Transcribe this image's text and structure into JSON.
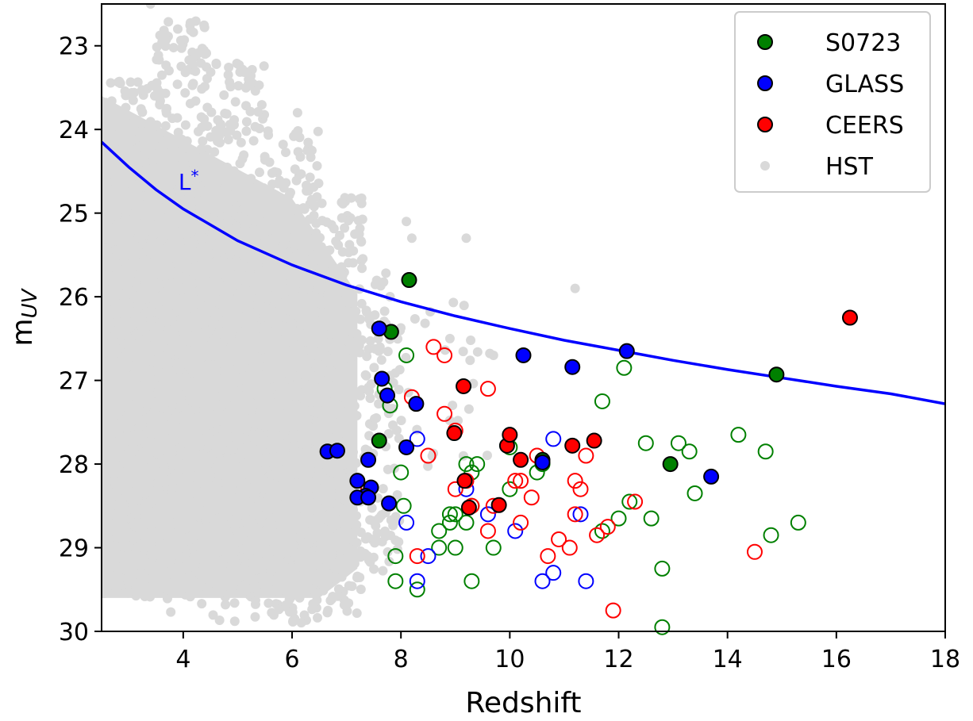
{
  "chart_data": {
    "type": "scatter",
    "title": "",
    "xlabel": "Redshift",
    "ylabel": "m",
    "ylabel_subscript": "UV",
    "xlim": [
      2.5,
      18
    ],
    "ylim": [
      30,
      22.5
    ],
    "y_inverted": true,
    "x_ticks": [
      4,
      6,
      8,
      10,
      12,
      14,
      16,
      18
    ],
    "y_ticks": [
      23,
      24,
      25,
      26,
      27,
      28,
      29,
      30
    ],
    "grid": false,
    "legend_position": "top-right",
    "colors": {
      "S0723": "#008000",
      "GLASS": "#0000ff",
      "CEERS": "#ff0000",
      "HST": "#d9d9d9",
      "L_star": "#0000ff"
    },
    "legend": [
      {
        "label": "S0723",
        "color": "#008000",
        "marker": "filled-circle-black-edge"
      },
      {
        "label": "GLASS",
        "color": "#0000ff",
        "marker": "filled-circle-black-edge"
      },
      {
        "label": "CEERS",
        "color": "#ff0000",
        "marker": "filled-circle-black-edge"
      },
      {
        "label": "HST",
        "color": "#d9d9d9",
        "marker": "dot"
      }
    ],
    "lstar_curve": {
      "label": "L",
      "label_sup": "*",
      "label_x": 4.1,
      "label_y": 24.72,
      "points": [
        [
          2.5,
          24.15
        ],
        [
          3,
          24.45
        ],
        [
          3.5,
          24.72
        ],
        [
          4,
          24.95
        ],
        [
          5,
          25.33
        ],
        [
          6,
          25.62
        ],
        [
          7,
          25.86
        ],
        [
          8,
          26.06
        ],
        [
          9,
          26.23
        ],
        [
          10,
          26.38
        ],
        [
          11,
          26.52
        ],
        [
          12,
          26.64
        ],
        [
          13,
          26.76
        ],
        [
          14,
          26.87
        ],
        [
          15,
          26.97
        ],
        [
          16,
          27.07
        ],
        [
          17,
          27.16
        ],
        [
          18,
          27.28
        ]
      ]
    },
    "hst_cloud": {
      "description_points": "dense grey cloud of HST sources between z~2.5 and z~8",
      "bands": [
        {
          "z_min": 2.5,
          "z_max": 3.5,
          "m_min": 23.4,
          "m_max": 29.6,
          "n": 320
        },
        {
          "z_min": 3.5,
          "z_max": 4.5,
          "m_min": 22.7,
          "m_max": 29.8,
          "n": 360
        },
        {
          "z_min": 4.5,
          "z_max": 5.5,
          "m_min": 23.2,
          "m_max": 29.9,
          "n": 340
        },
        {
          "z_min": 5.5,
          "z_max": 6.5,
          "m_min": 24.0,
          "m_max": 29.9,
          "n": 300
        },
        {
          "z_min": 6.5,
          "z_max": 7.3,
          "m_min": 24.8,
          "m_max": 29.8,
          "n": 220
        },
        {
          "z_min": 7.3,
          "z_max": 8.0,
          "m_min": 25.7,
          "m_max": 29.3,
          "n": 110
        },
        {
          "z_min": 8.0,
          "z_max": 9.7,
          "m_min": 26.0,
          "m_max": 28.2,
          "n": 25
        }
      ],
      "outliers": [
        [
          3.4,
          22.5
        ],
        [
          3.9,
          22.8
        ],
        [
          4.4,
          23.1
        ],
        [
          5.2,
          23.4
        ],
        [
          6.1,
          23.8
        ],
        [
          8.1,
          25.1
        ],
        [
          8.2,
          25.3
        ],
        [
          11.2,
          25.9
        ],
        [
          9.2,
          25.3
        ],
        [
          8.9,
          26.5
        ],
        [
          9.7,
          26.7
        ]
      ]
    },
    "series": [
      {
        "name": "S0723",
        "color": "#008000",
        "filled": [
          [
            8.15,
            25.8
          ],
          [
            7.82,
            26.42
          ],
          [
            7.6,
            27.72
          ],
          [
            14.9,
            26.93
          ],
          [
            12.95,
            28.0
          ],
          [
            10.6,
            27.95
          ]
        ],
        "open": [
          [
            8.1,
            26.7
          ],
          [
            7.7,
            27.1
          ],
          [
            7.8,
            27.3
          ],
          [
            8.0,
            28.1
          ],
          [
            8.05,
            28.5
          ],
          [
            7.9,
            29.1
          ],
          [
            7.9,
            29.4
          ],
          [
            8.3,
            29.5
          ],
          [
            8.7,
            29.0
          ],
          [
            8.7,
            28.8
          ],
          [
            8.9,
            28.7
          ],
          [
            8.9,
            28.6
          ],
          [
            9.0,
            28.6
          ],
          [
            9.0,
            29.0
          ],
          [
            9.2,
            28.7
          ],
          [
            9.2,
            28.0
          ],
          [
            9.3,
            28.1
          ],
          [
            9.4,
            28.0
          ],
          [
            9.3,
            28.5
          ],
          [
            9.3,
            29.4
          ],
          [
            9.7,
            29.0
          ],
          [
            10.0,
            27.8
          ],
          [
            10.0,
            28.3
          ],
          [
            10.5,
            28.1
          ],
          [
            10.6,
            28.0
          ],
          [
            11.7,
            28.8
          ],
          [
            11.7,
            27.25
          ],
          [
            12.0,
            28.65
          ],
          [
            12.1,
            26.85
          ],
          [
            12.2,
            28.45
          ],
          [
            12.5,
            27.75
          ],
          [
            12.6,
            28.65
          ],
          [
            12.8,
            29.25
          ],
          [
            12.8,
            29.95
          ],
          [
            13.1,
            27.75
          ],
          [
            13.3,
            27.85
          ],
          [
            13.4,
            28.35
          ],
          [
            14.2,
            27.65
          ],
          [
            14.7,
            27.85
          ],
          [
            14.8,
            28.85
          ],
          [
            15.3,
            28.7
          ]
        ]
      },
      {
        "name": "GLASS",
        "color": "#0000ff",
        "filled": [
          [
            7.6,
            26.38
          ],
          [
            7.65,
            26.98
          ],
          [
            7.75,
            27.18
          ],
          [
            8.28,
            27.28
          ],
          [
            8.1,
            27.8
          ],
          [
            6.65,
            27.85
          ],
          [
            6.83,
            27.84
          ],
          [
            7.4,
            27.95
          ],
          [
            7.2,
            28.2
          ],
          [
            7.45,
            28.28
          ],
          [
            7.35,
            28.38
          ],
          [
            7.2,
            28.4
          ],
          [
            7.4,
            28.4
          ],
          [
            7.78,
            28.47
          ],
          [
            10.25,
            26.7
          ],
          [
            11.15,
            26.84
          ],
          [
            12.15,
            26.65
          ],
          [
            10.6,
            27.98
          ],
          [
            13.7,
            28.15
          ]
        ],
        "open": [
          [
            8.3,
            27.7
          ],
          [
            8.1,
            28.7
          ],
          [
            9.2,
            28.3
          ],
          [
            9.6,
            28.6
          ],
          [
            10.1,
            28.8
          ],
          [
            10.8,
            27.7
          ],
          [
            10.6,
            29.4
          ],
          [
            10.8,
            29.3
          ],
          [
            11.3,
            28.6
          ],
          [
            11.4,
            29.4
          ],
          [
            8.3,
            29.4
          ],
          [
            8.5,
            29.1
          ]
        ]
      },
      {
        "name": "CEERS",
        "color": "#ff0000",
        "filled": [
          [
            9.15,
            27.07
          ],
          [
            8.98,
            27.63
          ],
          [
            9.17,
            28.2
          ],
          [
            9.25,
            28.52
          ],
          [
            9.8,
            28.49
          ],
          [
            9.95,
            27.78
          ],
          [
            10.0,
            27.65
          ],
          [
            10.2,
            27.95
          ],
          [
            11.15,
            27.78
          ],
          [
            11.55,
            27.72
          ],
          [
            16.25,
            26.25
          ]
        ],
        "open": [
          [
            7.4,
            28.3
          ],
          [
            8.2,
            27.2
          ],
          [
            8.6,
            26.6
          ],
          [
            8.8,
            26.7
          ],
          [
            8.8,
            27.4
          ],
          [
            8.5,
            27.9
          ],
          [
            9.0,
            27.6
          ],
          [
            9.0,
            28.3
          ],
          [
            9.2,
            28.2
          ],
          [
            9.3,
            28.5
          ],
          [
            9.6,
            27.1
          ],
          [
            9.6,
            28.8
          ],
          [
            9.7,
            28.5
          ],
          [
            10.1,
            28.2
          ],
          [
            10.2,
            28.2
          ],
          [
            10.2,
            28.7
          ],
          [
            10.4,
            28.4
          ],
          [
            10.5,
            27.9
          ],
          [
            10.7,
            29.1
          ],
          [
            10.9,
            28.9
          ],
          [
            11.1,
            29.0
          ],
          [
            11.2,
            28.2
          ],
          [
            11.2,
            28.6
          ],
          [
            11.3,
            28.3
          ],
          [
            11.4,
            27.9
          ],
          [
            11.6,
            28.85
          ],
          [
            11.8,
            28.75
          ],
          [
            11.9,
            29.75
          ],
          [
            12.3,
            28.45
          ],
          [
            14.5,
            29.05
          ],
          [
            8.3,
            29.1
          ]
        ]
      }
    ]
  }
}
